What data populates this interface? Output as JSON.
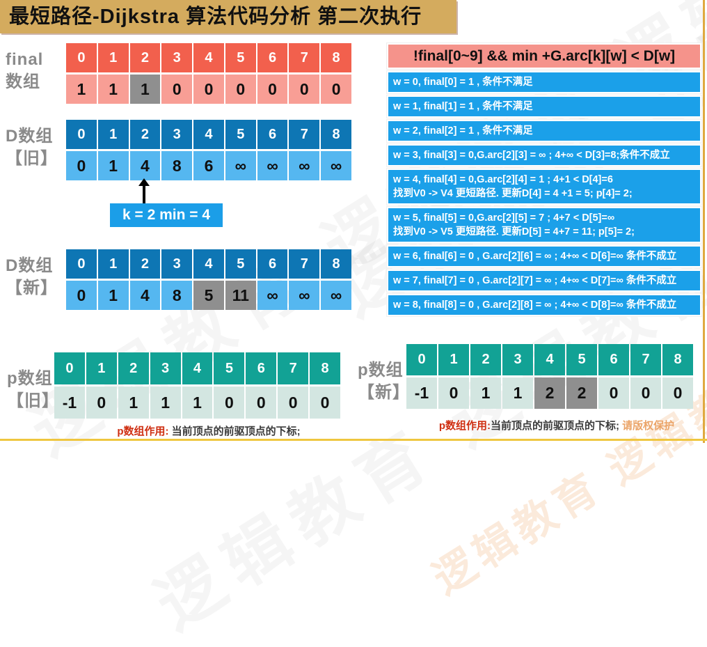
{
  "title": "最短路径-Dijkstra 算法代码分析 第二次执行",
  "watermark": "逻辑教育 逻辑教育 逻辑教育",
  "colors": {
    "banner_gold": "#d4ab5e",
    "red_header": "#f2604d",
    "red_value": "#f89e95",
    "blue_header": "#0e76b4",
    "blue_value": "#55b7f0",
    "bright_blue": "#1ba0e9",
    "teal_header": "#12a295",
    "teal_value": "#d3e6e1",
    "highlight_gray": "#8f8f8f",
    "cond_header_salmon": "#f5938b",
    "frame_gold": "#efc63f"
  },
  "final_array": {
    "label_line1": "final",
    "label_line2": "数组",
    "indices": [
      "0",
      "1",
      "2",
      "3",
      "4",
      "5",
      "6",
      "7",
      "8"
    ],
    "values": [
      "1",
      "1",
      "1",
      "0",
      "0",
      "0",
      "0",
      "0",
      "0"
    ],
    "highlight_values": [
      2
    ]
  },
  "d_old": {
    "label_line1": "D数组",
    "label_line2": "【旧】",
    "indices": [
      "0",
      "1",
      "2",
      "3",
      "4",
      "5",
      "6",
      "7",
      "8"
    ],
    "values": [
      "0",
      "1",
      "4",
      "8",
      "6",
      "∞",
      "∞",
      "∞",
      "∞"
    ],
    "highlight_values": []
  },
  "k_label": "k = 2 min = 4",
  "d_new": {
    "label_line1": "D数组",
    "label_line2": "【新】",
    "indices": [
      "0",
      "1",
      "2",
      "3",
      "4",
      "5",
      "6",
      "7",
      "8"
    ],
    "values": [
      "0",
      "1",
      "4",
      "8",
      "5",
      "11",
      "∞",
      "∞",
      "∞"
    ],
    "highlight_values": [
      4,
      5
    ]
  },
  "p_old": {
    "label_line1": "p数组",
    "label_line2": "【旧】",
    "indices": [
      "0",
      "1",
      "2",
      "3",
      "4",
      "5",
      "6",
      "7",
      "8"
    ],
    "values": [
      "-1",
      "0",
      "1",
      "1",
      "1",
      "0",
      "0",
      "0",
      "0"
    ],
    "highlight_values": []
  },
  "p_new": {
    "label_line1": "p数组",
    "label_line2": "【新】",
    "indices": [
      "0",
      "1",
      "2",
      "3",
      "4",
      "5",
      "6",
      "7",
      "8"
    ],
    "values": [
      "-1",
      "0",
      "1",
      "1",
      "2",
      "2",
      "0",
      "0",
      "0"
    ],
    "highlight_values": [
      4,
      5
    ]
  },
  "condition_panel": {
    "header": "!final[0~9] && min +G.arc[k][w] < D[w]",
    "rows": [
      {
        "lines": [
          "w = 0, final[0] = 1 , 条件不满足"
        ]
      },
      {
        "lines": [
          "w = 1, final[1] = 1 , 条件不满足"
        ]
      },
      {
        "lines": [
          "w = 2, final[2] = 1 , 条件不满足"
        ]
      },
      {
        "lines": [
          "w = 3, final[3] = 0,G.arc[2][3] = ∞ ; 4+∞ < D[3]=8;条件不成立"
        ]
      },
      {
        "lines": [
          "w = 4, final[4] = 0,G.arc[2][4] = 1  ; 4+1 < D[4]=6",
          "找到V0 -> V4 更短路径. 更新D[4] = 4 +1 = 5; p[4]= 2;"
        ]
      },
      {
        "lines": [
          "w = 5, final[5] = 0,G.arc[2][5] = 7  ; 4+7 < D[5]=∞",
          "找到V0 -> V5 更短路径. 更新D[5] = 4+7 = 11; p[5]= 2;"
        ]
      },
      {
        "lines": [
          "w = 6, final[6] = 0 , G.arc[2][6] = ∞  ; 4+∞ < D[6]=∞ 条件不成立"
        ]
      },
      {
        "lines": [
          "w = 7, final[7] = 0 , G.arc[2][7] = ∞  ; 4+∞ < D[7]=∞ 条件不成立"
        ]
      },
      {
        "lines": [
          "w = 8, final[8] = 0 , G.arc[2][8] = ∞  ; 4+∞ < D[8]=∞ 条件不成立"
        ]
      }
    ]
  },
  "captions": {
    "left_prefix": "p数组作用:",
    "left_text": " 当前顶点的前驱顶点的下标;",
    "right_prefix": "p数组作用:",
    "right_text": "当前顶点的前驱顶点的下标;",
    "right_suffix": " 请版权保护"
  }
}
